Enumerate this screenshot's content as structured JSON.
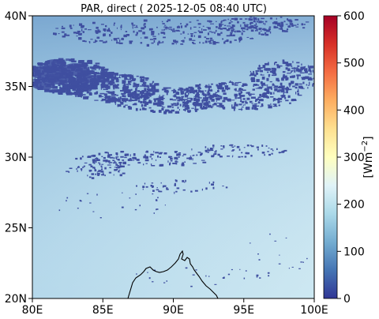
{
  "title": "PAR, direct ( 2025-12-05 08:40 UTC)",
  "map": {
    "lon_range": [
      80,
      100
    ],
    "lat_range": [
      20,
      40
    ],
    "x_ticks": [
      "80E",
      "85E",
      "90E",
      "95E",
      "100E"
    ],
    "y_ticks": [
      "20N",
      "25N",
      "30N",
      "35N",
      "40N"
    ]
  },
  "colorbar": {
    "label_base": "[Wm",
    "label_exp": "−2",
    "label_close": "]",
    "range": [
      0,
      600
    ],
    "ticks": [
      "0",
      "100",
      "200",
      "300",
      "400",
      "500",
      "600"
    ],
    "colormap": "RdYlBu_r"
  },
  "colors": {
    "cloud": "#3f4fa0",
    "clear_sky_low": "#a9d1e6",
    "clear_sky_high": "#c9e6f1",
    "coastline": "#000000"
  }
}
